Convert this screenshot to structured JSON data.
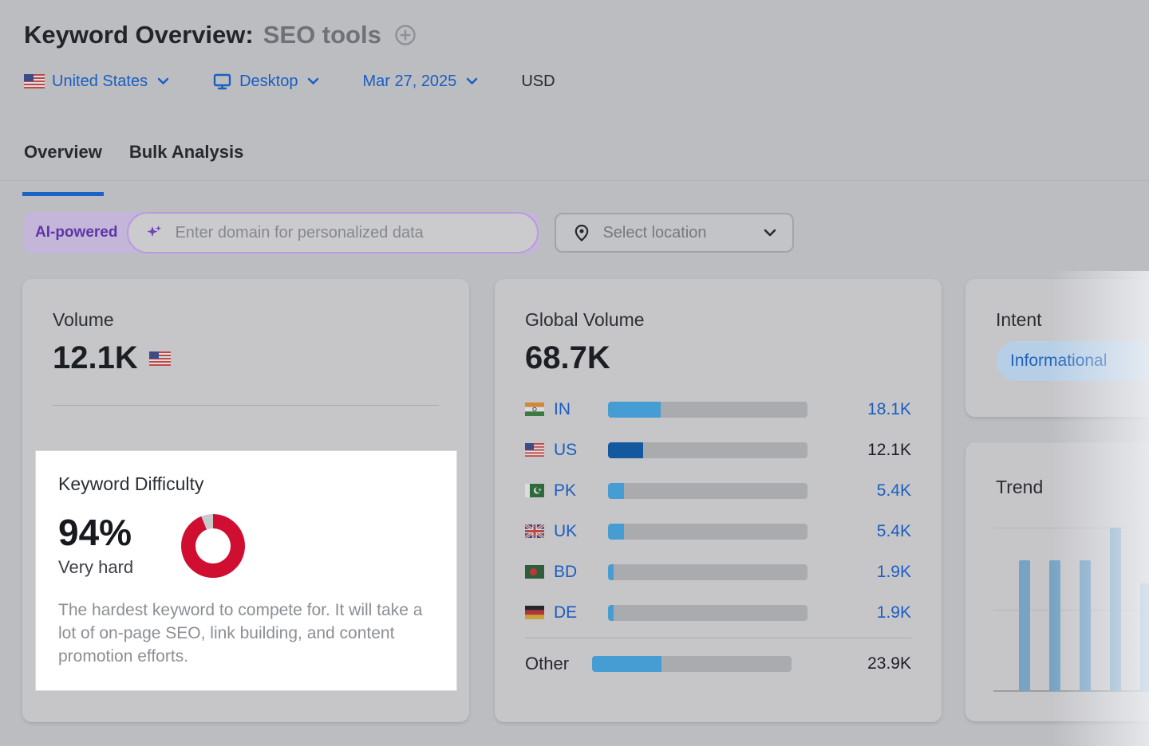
{
  "header": {
    "title": "Keyword Overview:",
    "keyword": "SEO tools",
    "add_icon": "plus-circle-icon"
  },
  "filters": {
    "country": "United States",
    "country_icon": "us-flag-icon",
    "device": "Desktop",
    "device_icon": "desktop-icon",
    "date": "Mar 27, 2025",
    "currency": "USD"
  },
  "tabs": {
    "overview": "Overview",
    "bulk_analysis": "Bulk Analysis",
    "active": "Overview"
  },
  "controls": {
    "ai_badge": "AI-powered",
    "ai_icon": "sparkle-icon",
    "domain_placeholder": "Enter domain for personalized data",
    "location_button": "Select location",
    "location_icon": "location-pin-icon"
  },
  "volume": {
    "label": "Volume",
    "value": "12.1K",
    "flag_icon": "us-flag-icon"
  },
  "keyword_difficulty": {
    "label": "Keyword Difficulty",
    "percent": 94,
    "percent_label": "94%",
    "level": "Very hard",
    "description": "The hardest keyword to compete for. It will take a lot of on-page SEO, link building, and content promotion efforts.",
    "donut_color": "#d00e31",
    "donut_rest_color": "#c9cacc"
  },
  "global_volume": {
    "label": "Global Volume",
    "value": "68.7K",
    "total": 68.7,
    "rows": [
      {
        "code": "IN",
        "flag": "in-flag-icon",
        "value": "18.1K",
        "num": 18.1,
        "link": true,
        "current": false
      },
      {
        "code": "US",
        "flag": "us-flag-icon",
        "value": "12.1K",
        "num": 12.1,
        "link": false,
        "current": true
      },
      {
        "code": "PK",
        "flag": "pk-flag-icon",
        "value": "5.4K",
        "num": 5.4,
        "link": true,
        "current": false
      },
      {
        "code": "UK",
        "flag": "uk-flag-icon",
        "value": "5.4K",
        "num": 5.4,
        "link": true,
        "current": false
      },
      {
        "code": "BD",
        "flag": "bd-flag-icon",
        "value": "1.9K",
        "num": 1.9,
        "link": true,
        "current": false
      },
      {
        "code": "DE",
        "flag": "de-flag-icon",
        "value": "1.9K",
        "num": 1.9,
        "link": true,
        "current": false
      }
    ],
    "other": {
      "label": "Other",
      "value": "23.9K",
      "num": 23.9
    }
  },
  "intent": {
    "label": "Intent",
    "badge": "Informational",
    "badge_bg": "#b7cfe6",
    "badge_text_color": "#1f63ba"
  },
  "trend": {
    "label": "Trend",
    "bars_pct": [
      80,
      80,
      80,
      100,
      66
    ]
  },
  "colors": {
    "accent_blue": "#1a5ec0",
    "bar_light_blue": "#459dd3",
    "bar_dark_blue": "#14599f",
    "kd_red": "#d00e31",
    "highlight_bg": "#ffffff"
  }
}
